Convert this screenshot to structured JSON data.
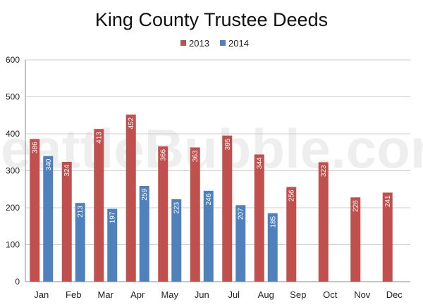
{
  "chart_data": {
    "type": "bar",
    "title": "King County Trustee Deeds",
    "watermark": "SeattleBubble.com",
    "categories": [
      "Jan",
      "Feb",
      "Mar",
      "Apr",
      "May",
      "Jun",
      "Jul",
      "Aug",
      "Sep",
      "Oct",
      "Nov",
      "Dec"
    ],
    "series": [
      {
        "name": "2013",
        "color": "#c0504d",
        "values": [
          386,
          324,
          413,
          452,
          366,
          363,
          395,
          344,
          256,
          323,
          228,
          241
        ]
      },
      {
        "name": "2014",
        "color": "#4f81bd",
        "values": [
          340,
          213,
          197,
          259,
          223,
          246,
          207,
          185,
          null,
          null,
          null,
          null
        ]
      }
    ],
    "ylim": [
      0,
      600
    ],
    "yticks": [
      0,
      100,
      200,
      300,
      400,
      500,
      600
    ],
    "grid": true,
    "legend": "top-center",
    "xlabel": "",
    "ylabel": ""
  }
}
